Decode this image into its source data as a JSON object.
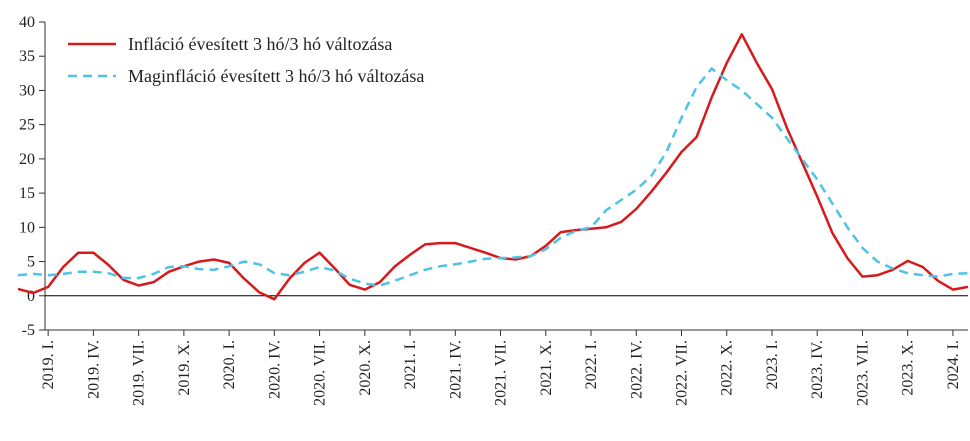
{
  "chart_data": {
    "type": "line",
    "categories": [
      null,
      null,
      "2019. I.",
      null,
      null,
      "2019. IV.",
      null,
      null,
      "2019. VII.",
      null,
      null,
      "2019. X.",
      null,
      null,
      "2020. I.",
      null,
      null,
      "2020. IV.",
      null,
      null,
      "2020. VII.",
      null,
      null,
      "2020. X.",
      null,
      null,
      "2021. I.",
      null,
      null,
      "2021. IV.",
      null,
      null,
      "2021. VII.",
      null,
      null,
      "2021. X.",
      null,
      null,
      "2022. I.",
      null,
      null,
      "2022. IV.",
      null,
      null,
      "2022. VII.",
      null,
      null,
      "2022. X.",
      null,
      null,
      "2023. I.",
      null,
      null,
      "2023. IV.",
      null,
      null,
      "2023. VII.",
      null,
      null,
      "2023. X.",
      null,
      null,
      "2024. I.",
      null
    ],
    "series": [
      {
        "name": "Infláció évesített 3 hó/3 hó változása",
        "color": "#d7191c",
        "dash": false,
        "values": [
          1.0,
          0.4,
          1.3,
          4.2,
          6.3,
          6.3,
          4.5,
          2.3,
          1.5,
          2.0,
          3.5,
          4.3,
          5.0,
          5.3,
          4.8,
          2.5,
          0.5,
          -0.5,
          2.5,
          4.8,
          6.3,
          4.0,
          1.6,
          0.9,
          2.0,
          4.3,
          6.0,
          7.5,
          7.7,
          7.7,
          7.0,
          6.3,
          5.5,
          5.3,
          5.8,
          7.3,
          9.3,
          9.6,
          9.8,
          10.0,
          10.8,
          12.7,
          15.2,
          18.0,
          21.0,
          23.2,
          29.0,
          34.0,
          38.2,
          34.0,
          30.2,
          24.5,
          19.5,
          14.5,
          9.2,
          5.5,
          2.8,
          3.0,
          3.8,
          5.1,
          4.2,
          2.2,
          0.9,
          1.3
        ]
      },
      {
        "name": "Maginfláció évesített 3 hó/3 hó változása",
        "color": "#4dc3e8",
        "dash": true,
        "values": [
          3.0,
          3.2,
          3.0,
          3.2,
          3.5,
          3.5,
          3.3,
          2.6,
          2.6,
          3.2,
          4.2,
          4.3,
          3.9,
          3.8,
          4.3,
          5.0,
          4.6,
          3.3,
          3.0,
          3.5,
          4.2,
          3.7,
          2.5,
          1.8,
          1.5,
          2.2,
          3.0,
          3.8,
          4.3,
          4.6,
          5.0,
          5.4,
          5.5,
          5.6,
          5.8,
          6.8,
          8.5,
          9.5,
          10.0,
          12.5,
          14.0,
          15.5,
          17.5,
          21.0,
          26.0,
          30.5,
          33.2,
          31.5,
          30.0,
          28.0,
          26.0,
          23.0,
          20.0,
          17.0,
          13.5,
          10.0,
          7.0,
          5.0,
          4.0,
          3.3,
          3.0,
          2.8,
          3.2,
          3.3
        ]
      }
    ],
    "ylim": [
      -5,
      40
    ],
    "yticks": [
      -5,
      0,
      5,
      10,
      15,
      20,
      25,
      30,
      35,
      40
    ],
    "grid": false,
    "legend": "top-left"
  }
}
